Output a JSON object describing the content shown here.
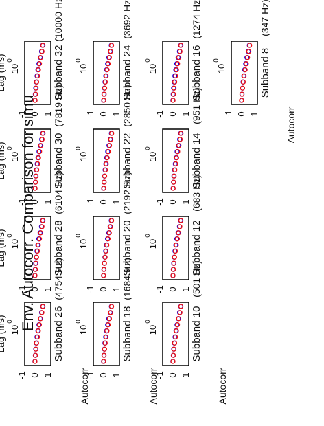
{
  "figure": {
    "title": "Env. Autocorr. Comparison for simu"
  },
  "colors": {
    "series_a": "#0000ee",
    "series_b": "#ee1111",
    "axes": "#000000"
  },
  "chart_data": [
    {
      "type": "scatter",
      "title": "Subband 8",
      "freq_label": "(347 Hz)",
      "ylabel": "Autocorr",
      "xlabel": "",
      "ytick_labels": [
        "1",
        "0",
        "-1"
      ],
      "xtick_labels": [
        "10",
        "0"
      ],
      "ylim": [
        -1,
        1
      ],
      "xscale": "log",
      "series": [
        {
          "color": "blue",
          "values": [
            0.95,
            0.85,
            0.72,
            0.6,
            0.5,
            0.42,
            0.35,
            0.3,
            0.25,
            0.22
          ]
        },
        {
          "color": "red",
          "values": [
            0.98,
            0.9,
            0.78,
            0.66,
            0.55,
            0.45,
            0.37,
            0.3,
            0.24,
            0.2
          ]
        }
      ]
    },
    {
      "type": "scatter",
      "title": "Subband 10",
      "freq_label": "(501 Hz)",
      "ylabel": "Autocorr",
      "xlabel": "",
      "ytick_labels": [
        "1",
        "0",
        "-1"
      ],
      "xtick_labels": [
        "10",
        "0"
      ],
      "ylim": [
        -1,
        1
      ],
      "xscale": "log",
      "series": [
        {
          "color": "blue",
          "values": [
            0.95,
            0.84,
            0.72,
            0.6,
            0.5,
            0.41,
            0.34,
            0.28,
            0.24,
            0.2
          ]
        },
        {
          "color": "red",
          "values": [
            0.97,
            0.88,
            0.76,
            0.64,
            0.54,
            0.45,
            0.37,
            0.3,
            0.25,
            0.21
          ]
        }
      ]
    },
    {
      "type": "scatter",
      "title": "Subband 12",
      "freq_label": "(683 Hz)",
      "ylabel": "",
      "xlabel": "",
      "ytick_labels": [
        "1",
        "0",
        "-1"
      ],
      "xtick_labels": [
        "10",
        "0"
      ],
      "ylim": [
        -1,
        1
      ],
      "xscale": "log",
      "series": [
        {
          "color": "blue",
          "values": [
            0.94,
            0.83,
            0.7,
            0.58,
            0.48,
            0.4,
            0.33,
            0.28,
            0.24,
            0.21
          ]
        },
        {
          "color": "red",
          "values": [
            0.97,
            0.87,
            0.75,
            0.63,
            0.53,
            0.44,
            0.36,
            0.3,
            0.25,
            0.21
          ]
        }
      ]
    },
    {
      "type": "scatter",
      "title": "Subband 14",
      "freq_label": "(951 Hz)",
      "ylabel": "",
      "xlabel": "",
      "ytick_labels": [
        "1",
        "0",
        "-1"
      ],
      "xtick_labels": [
        "10",
        "0"
      ],
      "ylim": [
        -1,
        1
      ],
      "xscale": "log",
      "series": [
        {
          "color": "blue",
          "values": [
            0.95,
            0.85,
            0.73,
            0.61,
            0.51,
            0.43,
            0.36,
            0.3,
            0.26,
            0.22
          ]
        },
        {
          "color": "red",
          "values": [
            0.98,
            0.9,
            0.78,
            0.66,
            0.56,
            0.47,
            0.39,
            0.32,
            0.27,
            0.23
          ]
        }
      ]
    },
    {
      "type": "scatter",
      "title": "Subband 16",
      "freq_label": "(1274 Hz)",
      "ylabel": "",
      "xlabel": "",
      "ytick_labels": [
        "1",
        "0",
        "-1"
      ],
      "xtick_labels": [
        "10",
        "0"
      ],
      "ylim": [
        -1,
        1
      ],
      "xscale": "log",
      "series": [
        {
          "color": "blue",
          "values": [
            0.94,
            0.83,
            0.7,
            0.58,
            0.48,
            0.39,
            0.32,
            0.27,
            0.23,
            0.2
          ]
        },
        {
          "color": "red",
          "values": [
            0.97,
            0.88,
            0.77,
            0.65,
            0.55,
            0.46,
            0.38,
            0.31,
            0.26,
            0.22
          ]
        }
      ]
    },
    {
      "type": "scatter",
      "title": "Subband 18",
      "freq_label": "(1684 Hz)",
      "ylabel": "Autocorr",
      "xlabel": "",
      "ytick_labels": [
        "1",
        "0",
        "-1"
      ],
      "xtick_labels": [
        "10",
        "0"
      ],
      "ylim": [
        -1,
        1
      ],
      "xscale": "log",
      "series": [
        {
          "color": "blue",
          "values": [
            0.95,
            0.84,
            0.71,
            0.59,
            0.49,
            0.4,
            0.33,
            0.28,
            0.24,
            0.2
          ]
        },
        {
          "color": "red",
          "values": [
            0.97,
            0.88,
            0.76,
            0.64,
            0.53,
            0.44,
            0.36,
            0.3,
            0.25,
            0.21
          ]
        }
      ]
    },
    {
      "type": "scatter",
      "title": "Subband 20",
      "freq_label": "(2192 Hz)",
      "ylabel": "",
      "xlabel": "",
      "ytick_labels": [
        "1",
        "0",
        "-1"
      ],
      "xtick_labels": [
        "10",
        "0"
      ],
      "ylim": [
        -1,
        1
      ],
      "xscale": "log",
      "series": [
        {
          "color": "blue",
          "values": [
            0.94,
            0.83,
            0.7,
            0.58,
            0.48,
            0.4,
            0.33,
            0.27,
            0.23,
            0.2
          ]
        },
        {
          "color": "red",
          "values": [
            0.97,
            0.87,
            0.75,
            0.63,
            0.52,
            0.43,
            0.35,
            0.29,
            0.24,
            0.2
          ]
        }
      ]
    },
    {
      "type": "scatter",
      "title": "Subband 22",
      "freq_label": "(2850 Hz)",
      "ylabel": "",
      "xlabel": "",
      "ytick_labels": [
        "1",
        "0",
        "-1"
      ],
      "xtick_labels": [
        "10",
        "0"
      ],
      "ylim": [
        -1,
        1
      ],
      "xscale": "log",
      "series": [
        {
          "color": "blue",
          "values": [
            0.95,
            0.85,
            0.72,
            0.6,
            0.5,
            0.42,
            0.35,
            0.29,
            0.25,
            0.21
          ]
        },
        {
          "color": "red",
          "values": [
            0.98,
            0.89,
            0.77,
            0.65,
            0.55,
            0.46,
            0.38,
            0.31,
            0.26,
            0.22
          ]
        }
      ]
    },
    {
      "type": "scatter",
      "title": "Subband 24",
      "freq_label": "(3692 Hz)",
      "ylabel": "",
      "xlabel": "",
      "ytick_labels": [
        "1",
        "0",
        "-1"
      ],
      "xtick_labels": [
        "10",
        "0"
      ],
      "ylim": [
        -1,
        1
      ],
      "xscale": "log",
      "series": [
        {
          "color": "blue",
          "values": [
            0.94,
            0.84,
            0.71,
            0.59,
            0.49,
            0.41,
            0.34,
            0.28,
            0.24,
            0.21
          ]
        },
        {
          "color": "red",
          "values": [
            0.97,
            0.88,
            0.76,
            0.64,
            0.54,
            0.45,
            0.37,
            0.31,
            0.26,
            0.22
          ]
        }
      ]
    },
    {
      "type": "scatter",
      "title": "Subband 26",
      "freq_label": "(4754 Hz)",
      "ylabel": "Autocorr",
      "xlabel": "Lag (ms)",
      "ytick_labels": [
        "1",
        "0",
        "-1"
      ],
      "xtick_labels": [
        "10",
        "0"
      ],
      "ylim": [
        -1,
        1
      ],
      "xscale": "log",
      "series": [
        {
          "color": "blue",
          "values": [
            0.95,
            0.84,
            0.71,
            0.59,
            0.49,
            0.4,
            0.33,
            0.28,
            0.24,
            0.2
          ]
        },
        {
          "color": "red",
          "values": [
            0.97,
            0.87,
            0.75,
            0.63,
            0.53,
            0.44,
            0.36,
            0.3,
            0.25,
            0.21
          ]
        }
      ]
    },
    {
      "type": "scatter",
      "title": "Subband 28",
      "freq_label": "(6104 Hz)",
      "ylabel": "",
      "xlabel": "Lag (ms)",
      "ytick_labels": [
        "1",
        "0",
        "-1"
      ],
      "xtick_labels": [
        "10",
        "0"
      ],
      "ylim": [
        -1,
        1
      ],
      "xscale": "log",
      "series": [
        {
          "color": "blue",
          "values": [
            0.94,
            0.83,
            0.7,
            0.58,
            0.48,
            0.4,
            0.33,
            0.27,
            0.23,
            0.2
          ]
        },
        {
          "color": "red",
          "values": [
            0.97,
            0.88,
            0.76,
            0.64,
            0.53,
            0.44,
            0.36,
            0.3,
            0.25,
            0.21
          ]
        }
      ]
    },
    {
      "type": "scatter",
      "title": "Subband 30",
      "freq_label": "(7819 Hz)",
      "ylabel": "",
      "xlabel": "Lag (ms)",
      "ytick_labels": [
        "1",
        "0",
        "-1"
      ],
      "xtick_labels": [
        "10",
        "0"
      ],
      "ylim": [
        -1,
        1
      ],
      "xscale": "log",
      "series": [
        {
          "color": "blue",
          "values": [
            0.95,
            0.85,
            0.72,
            0.6,
            0.5,
            0.42,
            0.35,
            0.29,
            0.25,
            0.21
          ]
        },
        {
          "color": "red",
          "values": [
            0.98,
            0.89,
            0.77,
            0.65,
            0.55,
            0.46,
            0.38,
            0.31,
            0.26,
            0.22
          ]
        }
      ]
    },
    {
      "type": "scatter",
      "title": "Subband 32",
      "freq_label": "(10000 Hz)",
      "ylabel": "",
      "xlabel": "Lag (ms)",
      "ytick_labels": [
        "1",
        "0",
        "-1"
      ],
      "xtick_labels": [
        "10",
        "0"
      ],
      "ylim": [
        -1,
        1
      ],
      "xscale": "log",
      "series": [
        {
          "color": "blue",
          "values": [
            0.94,
            0.84,
            0.71,
            0.59,
            0.49,
            0.41,
            0.34,
            0.28,
            0.24,
            0.21
          ]
        },
        {
          "color": "red",
          "values": [
            0.97,
            0.88,
            0.76,
            0.64,
            0.54,
            0.45,
            0.37,
            0.31,
            0.26,
            0.22
          ]
        }
      ]
    }
  ]
}
